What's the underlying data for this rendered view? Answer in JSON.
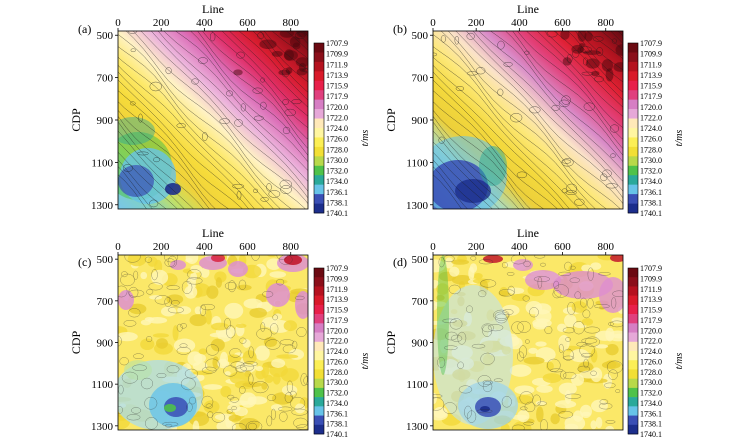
{
  "chart_data": [
    {
      "type": "heatmap",
      "panel_label": "(a)",
      "xlabel": "Line",
      "ylabel": "CDP",
      "x_ticks": [
        "0",
        "200",
        "400",
        "600",
        "800"
      ],
      "y_ticks": [
        "500",
        "700",
        "900",
        "1100",
        "1300"
      ],
      "xlim": [
        0,
        880
      ],
      "ylim": [
        1320,
        480
      ],
      "colorbar_label": "t/ms",
      "pattern": "smooth diagonal trend: shallow (red, ~1708 ms) at high Line / low CDP, deep (blue, ~1738 ms) at low Line / high CDP",
      "min_value": 1707.9,
      "max_value": 1740.1
    },
    {
      "type": "heatmap",
      "panel_label": "(b)",
      "xlabel": "Line",
      "ylabel": "CDP",
      "x_ticks": [
        "0",
        "200",
        "400",
        "600",
        "800"
      ],
      "y_ticks": [
        "500",
        "700",
        "900",
        "1100",
        "1300"
      ],
      "xlim": [
        0,
        880
      ],
      "ylim": [
        1320,
        480
      ],
      "colorbar_label": "t/ms",
      "pattern": "similar diagonal trend as (a) with sharper deep (blue) zone at low Line / high CDP",
      "min_value": 1707.9,
      "max_value": 1740.1
    },
    {
      "type": "heatmap",
      "panel_label": "(c)",
      "xlabel": "Line",
      "ylabel": "CDP",
      "x_ticks": [
        "0",
        "200",
        "400",
        "600",
        "800"
      ],
      "y_ticks": [
        "500",
        "700",
        "900",
        "1100",
        "1300"
      ],
      "xlim": [
        0,
        880
      ],
      "ylim": [
        1320,
        480
      ],
      "colorbar_label": "t/ms",
      "pattern": "mostly flat yellow (~1722-1726 ms) with noisy patches; magenta patches along top, blue pocket near Line 250 CDP 1220",
      "min_value": 1707.9,
      "max_value": 1740.1
    },
    {
      "type": "heatmap",
      "panel_label": "(d)",
      "xlabel": "Line",
      "ylabel": "CDP",
      "x_ticks": [
        "0",
        "200",
        "400",
        "600",
        "800"
      ],
      "y_ticks": [
        "500",
        "700",
        "900",
        "1100",
        "1300"
      ],
      "xlim": [
        0,
        880
      ],
      "ylim": [
        1320,
        480
      ],
      "colorbar_label": "t/ms",
      "pattern": "mostly flat yellow with light-blue zone on left half and blue pocket near Line 230 CDP 1230; magenta patches top-right",
      "min_value": 1707.9,
      "max_value": 1740.1
    }
  ],
  "colorbar": {
    "ticks": [
      "1707.9",
      "1709.9",
      "1711.9",
      "1713.9",
      "1715.9",
      "1717.9",
      "1720.0",
      "1722.0",
      "1724.0",
      "1726.0",
      "1728.0",
      "1730.0",
      "1732.0",
      "1734.0",
      "1736.1",
      "1738.1",
      "1740.1"
    ],
    "unit_label": "t/ms",
    "colors": [
      "#6b0a12",
      "#8b0f1a",
      "#b5121f",
      "#d91a2a",
      "#e8204a",
      "#e0407e",
      "#d67ec4",
      "#e6a8d8",
      "#ffe9b8",
      "#fff6a0",
      "#fcef55",
      "#f2df35",
      "#b8d94a",
      "#4fc24a",
      "#2aa99a",
      "#67c3e8",
      "#3a4fb5",
      "#1c2e8c"
    ]
  }
}
